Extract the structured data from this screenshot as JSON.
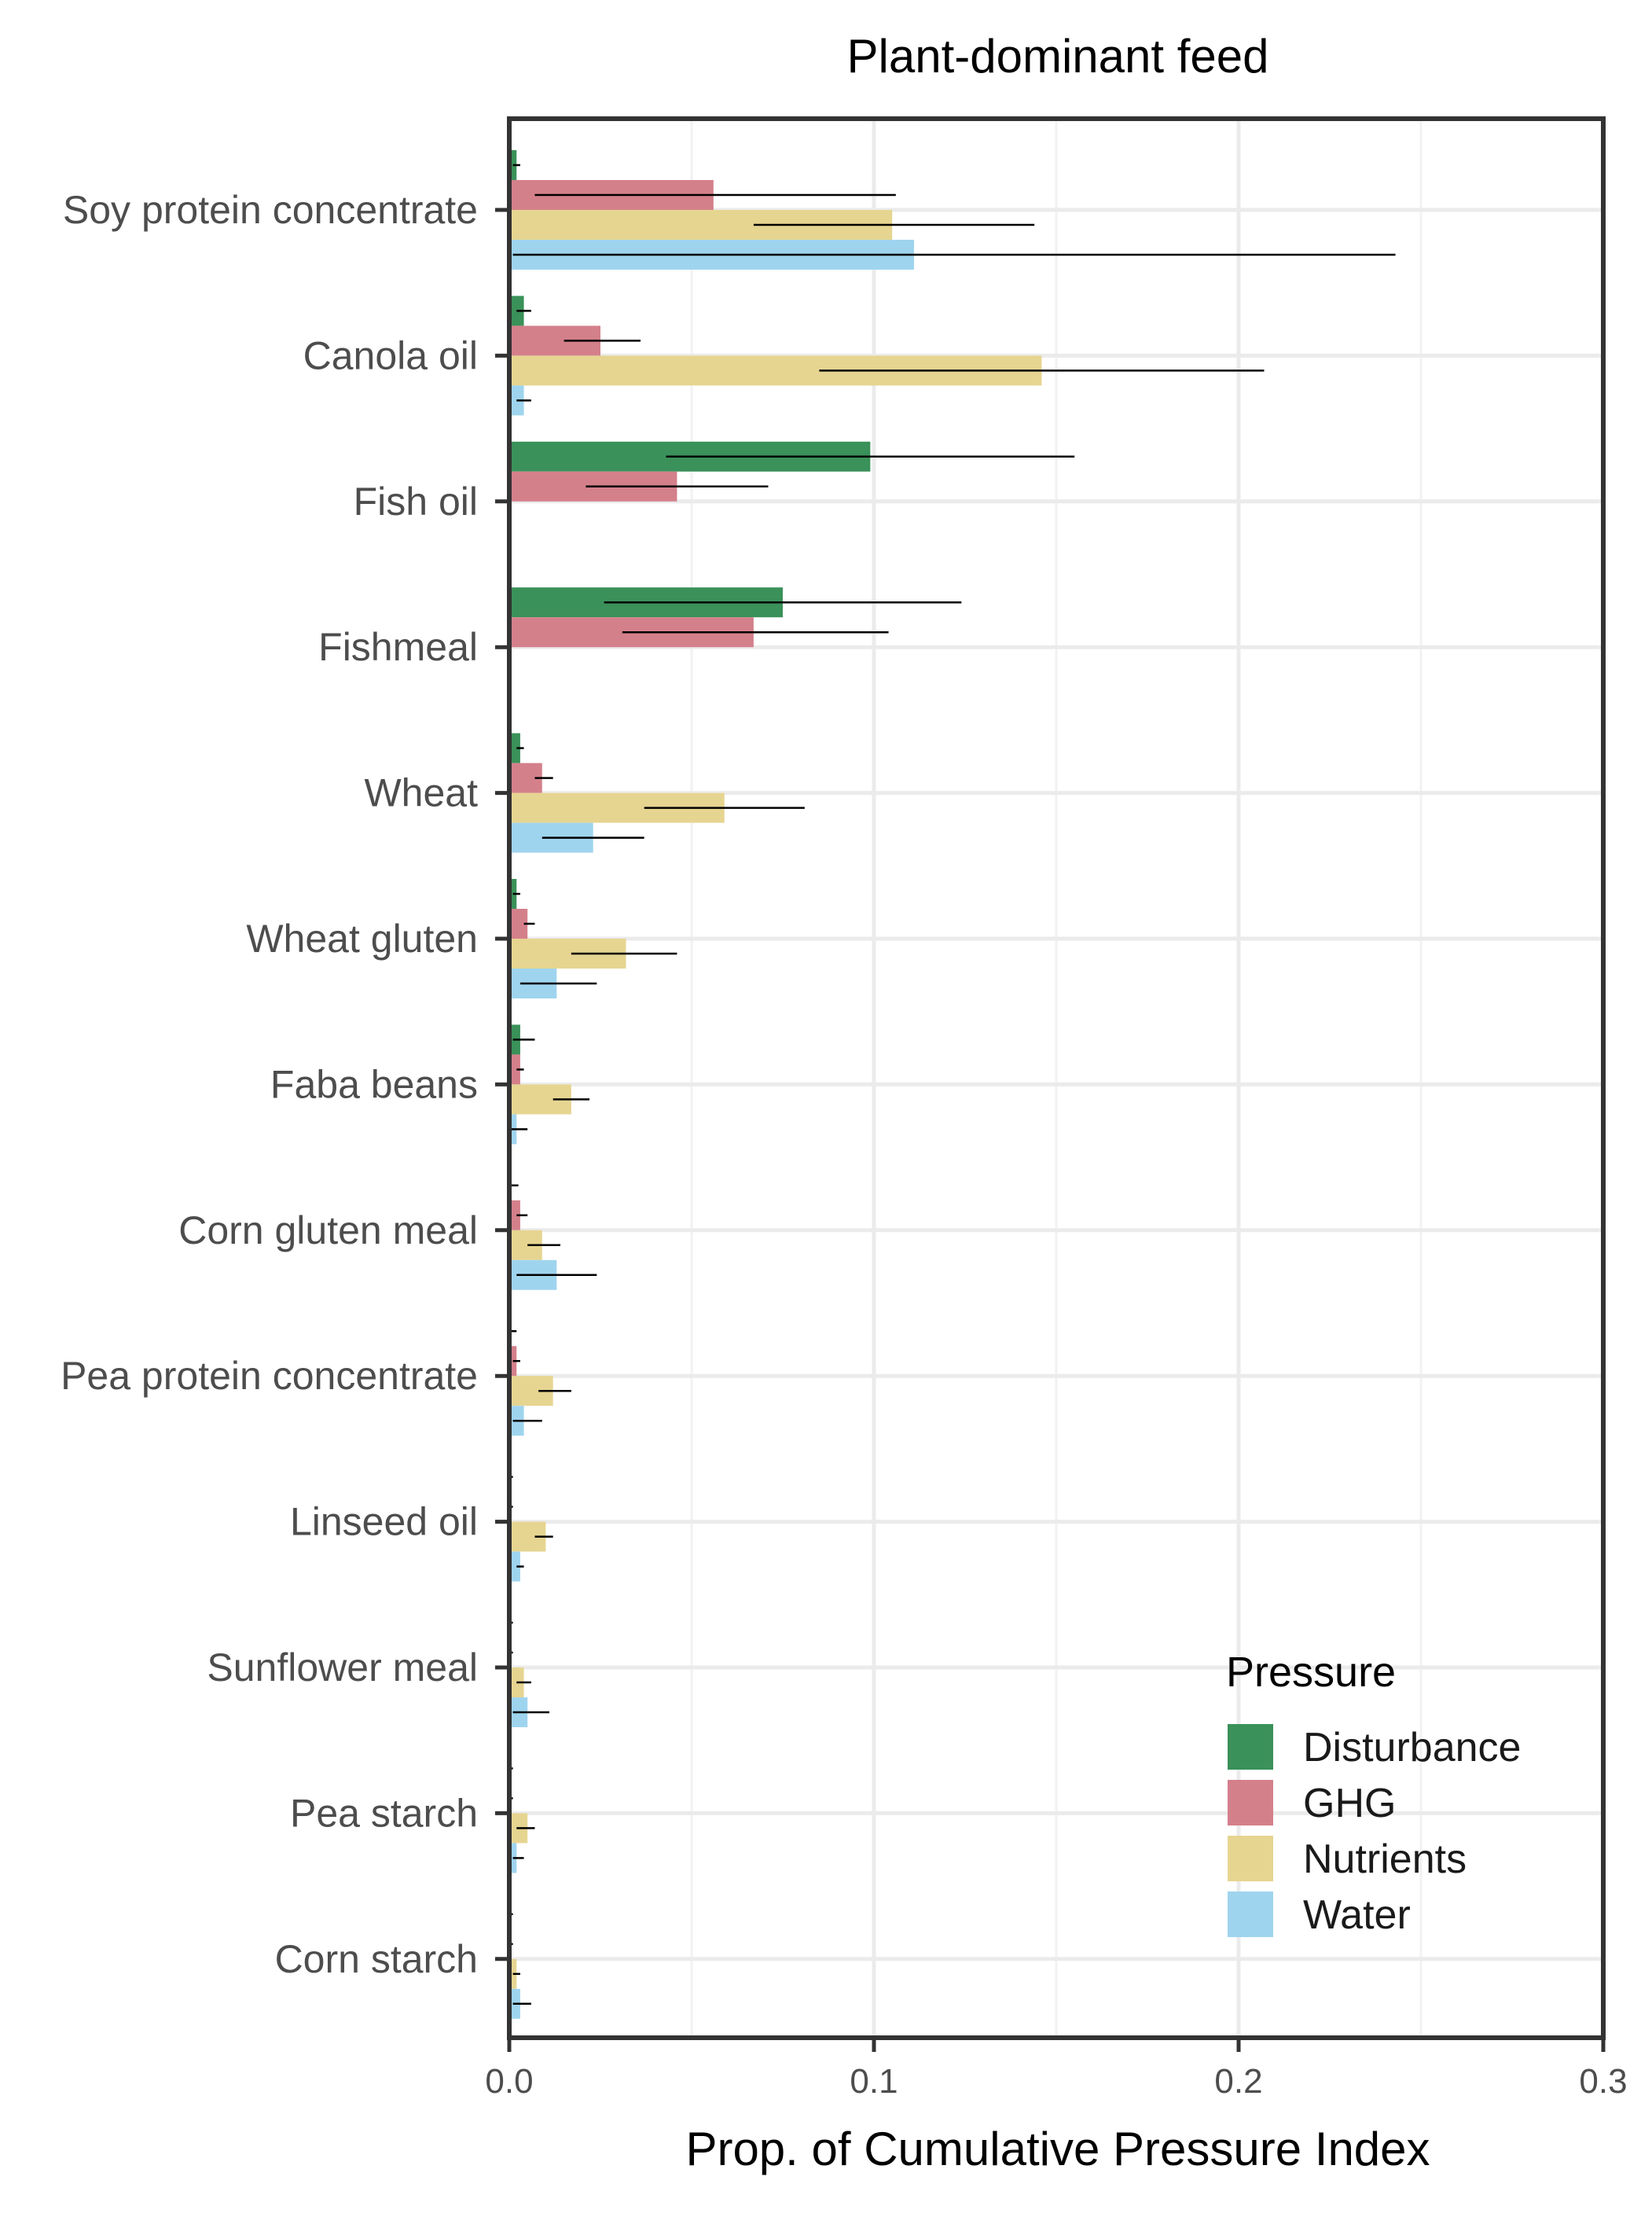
{
  "chart_data": {
    "type": "bar",
    "orientation": "horizontal",
    "title": "Plant-dominant feed",
    "xlabel": "Prop. of Cumulative Pressure Index",
    "ylabel": "",
    "xlim": [
      0,
      0.3
    ],
    "xticks": [
      "0.0",
      "0.1",
      "0.2",
      "0.3"
    ],
    "grid": true,
    "legend_title": "Pressure",
    "legend_position": "bottom-right",
    "categories": [
      "Soy protein concentrate",
      "Canola oil",
      "Fish oil",
      "Fishmeal",
      "Wheat",
      "Wheat gluten",
      "Faba beans",
      "Corn gluten meal",
      "Pea protein concentrate",
      "Linseed oil",
      "Sunflower meal",
      "Pea starch",
      "Corn starch"
    ],
    "series": [
      {
        "name": "Disturbance",
        "color": "#3a9159",
        "values": [
          0.002,
          0.004,
          0.099,
          0.075,
          0.003,
          0.002,
          0.003,
          0.0005,
          0.0005,
          0.0003,
          0.0003,
          0.0003,
          0.0003
        ],
        "err_low": [
          0.001,
          0.002,
          0.043,
          0.026,
          0.002,
          0.001,
          0.001,
          0.0002,
          0.0002,
          0.0001,
          0.0001,
          0.0001,
          0.0001
        ],
        "err_high": [
          0.003,
          0.006,
          0.155,
          0.124,
          0.004,
          0.003,
          0.007,
          0.0025,
          0.002,
          0.001,
          0.001,
          0.001,
          0.001
        ]
      },
      {
        "name": "GHG",
        "color": "#d4808b",
        "values": [
          0.056,
          0.025,
          0.046,
          0.067,
          0.009,
          0.005,
          0.003,
          0.003,
          0.002,
          0.0003,
          0.0003,
          0.0003,
          0.0003
        ],
        "err_low": [
          0.007,
          0.015,
          0.021,
          0.031,
          0.007,
          0.004,
          0.002,
          0.002,
          0.001,
          0.0001,
          0.0001,
          0.0001,
          0.0001
        ],
        "err_high": [
          0.106,
          0.036,
          0.071,
          0.104,
          0.012,
          0.007,
          0.004,
          0.005,
          0.003,
          0.001,
          0.001,
          0.001,
          0.001
        ]
      },
      {
        "name": "Nutrients",
        "color": "#e6d591",
        "values": [
          0.105,
          0.146,
          0.0,
          0.0,
          0.059,
          0.032,
          0.017,
          0.009,
          0.012,
          0.01,
          0.004,
          0.005,
          0.002
        ],
        "err_low": [
          0.067,
          0.085,
          0.0,
          0.0,
          0.037,
          0.017,
          0.012,
          0.005,
          0.008,
          0.007,
          0.002,
          0.002,
          0.001
        ],
        "err_high": [
          0.144,
          0.207,
          0.0,
          0.0,
          0.081,
          0.046,
          0.022,
          0.014,
          0.017,
          0.012,
          0.006,
          0.007,
          0.003
        ]
      },
      {
        "name": "Water",
        "color": "#9fd4ef",
        "values": [
          0.111,
          0.004,
          0.0,
          0.0,
          0.023,
          0.013,
          0.002,
          0.013,
          0.004,
          0.003,
          0.005,
          0.002,
          0.003
        ],
        "err_low": [
          0.001,
          0.002,
          0.0,
          0.0,
          0.009,
          0.003,
          0.0005,
          0.002,
          0.001,
          0.002,
          0.001,
          0.001,
          0.001
        ],
        "err_high": [
          0.243,
          0.006,
          0.0,
          0.0,
          0.037,
          0.024,
          0.005,
          0.024,
          0.009,
          0.004,
          0.011,
          0.004,
          0.006
        ]
      }
    ]
  }
}
